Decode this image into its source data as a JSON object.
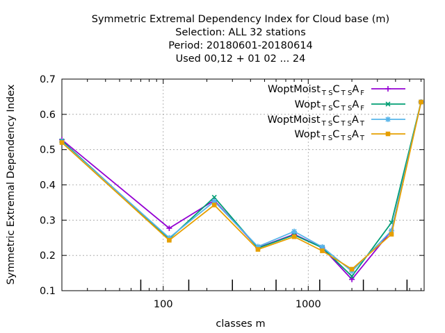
{
  "chart_data": {
    "type": "line",
    "title_lines": [
      "Symmetric Extremal Dependency Index  for Cloud base (m)",
      "Selection: ALL     32 stations",
      "Period: 20180601-20180614",
      "Used  00,12  + 01 02 ... 24"
    ],
    "xlabel": "classes m",
    "ylabel": "Symmetric Extremal Dependency Index",
    "x_scale": "log",
    "xlim": [
      20,
      6300
    ],
    "ylim": [
      0.1,
      0.7
    ],
    "x_tick_labels": [
      "100",
      "1000"
    ],
    "x_tick_values": [
      100,
      1000
    ],
    "y_ticks": [
      0.1,
      0.2,
      0.3,
      0.4,
      0.5,
      0.6,
      0.7
    ],
    "y_tick_labels": [
      "0.1",
      "0.2",
      "0.3",
      "0.4",
      "0.5",
      "0.6",
      "0.7"
    ],
    "grid": true,
    "legend_position": "top-right",
    "x": [
      20,
      110,
      225,
      450,
      800,
      1250,
      2000,
      3750,
      6000
    ],
    "series": [
      {
        "legend_main": [
          "WoptMoist",
          "C",
          "A"
        ],
        "legend_sub": [
          "T S",
          "T S",
          "F"
        ],
        "color": "#9400d3",
        "marker": "plus",
        "values": [
          0.528,
          0.277,
          0.356,
          0.222,
          0.26,
          0.222,
          0.132,
          0.27,
          0.635
        ]
      },
      {
        "legend_main": [
          "Wopt",
          "C",
          "A"
        ],
        "legend_sub": [
          "T S",
          "T S",
          "F"
        ],
        "color": "#009e73",
        "marker": "x",
        "values": [
          0.525,
          0.247,
          0.365,
          0.221,
          0.258,
          0.222,
          0.141,
          0.293,
          0.635
        ]
      },
      {
        "legend_main": [
          "WoptMoist",
          "C",
          "A"
        ],
        "legend_sub": [
          "T S",
          "T S",
          "T"
        ],
        "color": "#56b4e9",
        "marker": "star",
        "values": [
          0.522,
          0.25,
          0.353,
          0.225,
          0.268,
          0.224,
          0.155,
          0.27,
          0.635
        ]
      },
      {
        "legend_main": [
          "Wopt",
          "C",
          "A"
        ],
        "legend_sub": [
          "T S",
          "T S",
          "T"
        ],
        "color": "#e69f00",
        "marker": "box",
        "values": [
          0.52,
          0.243,
          0.343,
          0.217,
          0.253,
          0.213,
          0.161,
          0.26,
          0.635
        ]
      }
    ],
    "event_marks_x": [
      70,
      150,
      300,
      600,
      1200,
      2400,
      4800
    ]
  }
}
